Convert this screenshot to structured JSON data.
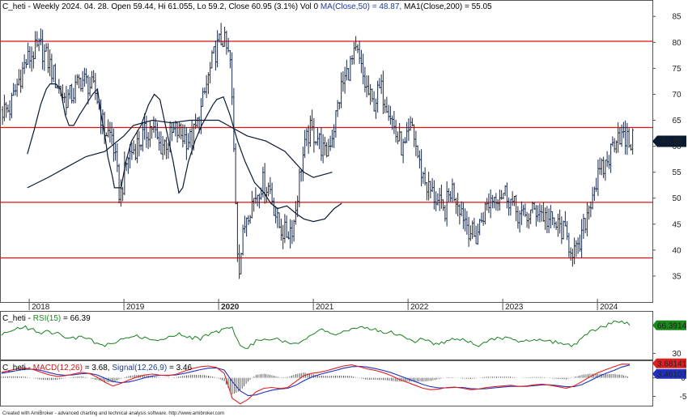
{
  "chart_data": [
    {
      "type": "ohlc",
      "header": {
        "symbol": "C_heti",
        "info": " - Weekly 2024. 04. 28. Open 59.44, Hi 61.055, Lo 59.2, Close 60.95 (3.1%) Vol 0 ",
        "ma50_text": "MA(Close,50) = 48.87,",
        "ma200_text": " MA1(Close,200) = 55.05"
      },
      "last_value_label": "60.95",
      "ylim": [
        30,
        88
      ],
      "yticks": [
        "35",
        "40",
        "45",
        "50",
        "55",
        "60",
        "65",
        "70",
        "75",
        "80",
        "85"
      ],
      "x_labels": [
        "2018",
        "2019",
        "2020",
        "2021",
        "2022",
        "2023",
        "2024"
      ],
      "bold_x_label": "2020",
      "horizontal_lines": [
        80.2,
        63.6,
        49.2,
        38.5
      ],
      "close_series": [
        [
          "2017-10",
          67
        ],
        [
          "2017-11",
          72
        ],
        [
          "2017-12",
          76
        ],
        [
          "2018-01",
          78
        ],
        [
          "2018-02",
          79
        ],
        [
          "2018-03",
          76
        ],
        [
          "2018-04",
          72
        ],
        [
          "2018-05",
          69
        ],
        [
          "2018-06",
          70
        ],
        [
          "2018-07",
          73
        ],
        [
          "2018-08",
          72
        ],
        [
          "2018-09",
          70
        ],
        [
          "2018-10",
          63
        ],
        [
          "2018-11",
          62
        ],
        [
          "2018-12",
          50
        ],
        [
          "2019-01",
          58
        ],
        [
          "2019-02",
          60
        ],
        [
          "2019-03",
          62
        ],
        [
          "2019-04",
          64
        ],
        [
          "2019-05",
          60
        ],
        [
          "2019-06",
          61
        ],
        [
          "2019-07",
          63
        ],
        [
          "2019-08",
          62
        ],
        [
          "2019-09",
          61
        ],
        [
          "2019-10",
          65
        ],
        [
          "2019-11",
          72
        ],
        [
          "2019-12",
          78
        ],
        [
          "2020-01",
          81
        ],
        [
          "2020-02",
          76
        ],
        [
          "2020-03",
          36
        ],
        [
          "2020-04",
          47
        ],
        [
          "2020-05",
          50
        ],
        [
          "2020-06",
          53
        ],
        [
          "2020-07",
          52
        ],
        [
          "2020-08",
          45
        ],
        [
          "2020-09",
          43
        ],
        [
          "2020-10",
          45
        ],
        [
          "2020-11",
          57
        ],
        [
          "2020-12",
          63
        ],
        [
          "2021-01",
          62
        ],
        [
          "2021-02",
          58
        ],
        [
          "2021-03",
          63
        ],
        [
          "2021-04",
          71
        ],
        [
          "2021-05",
          75
        ],
        [
          "2021-06",
          78
        ],
        [
          "2021-07",
          72
        ],
        [
          "2021-08",
          68
        ],
        [
          "2021-09",
          71
        ],
        [
          "2021-10",
          68
        ],
        [
          "2021-11",
          62
        ],
        [
          "2021-12",
          59
        ],
        [
          "2022-01",
          64
        ],
        [
          "2022-02",
          56
        ],
        [
          "2022-03",
          52
        ],
        [
          "2022-04",
          50
        ],
        [
          "2022-05",
          47
        ],
        [
          "2022-06",
          52
        ],
        [
          "2022-07",
          49
        ],
        [
          "2022-08",
          45
        ],
        [
          "2022-09",
          42
        ],
        [
          "2022-10",
          47
        ],
        [
          "2022-11",
          50
        ],
        [
          "2022-12",
          51
        ],
        [
          "2023-01",
          51
        ],
        [
          "2023-02",
          48
        ],
        [
          "2023-03",
          46
        ],
        [
          "2023-04",
          47
        ],
        [
          "2023-05",
          48
        ],
        [
          "2023-06",
          46
        ],
        [
          "2023-07",
          45
        ],
        [
          "2023-08",
          44
        ],
        [
          "2023-09",
          41
        ],
        [
          "2023-10",
          39
        ],
        [
          "2023-11",
          46
        ],
        [
          "2023-12",
          52
        ],
        [
          "2024-01",
          55
        ],
        [
          "2024-02",
          58
        ],
        [
          "2024-03",
          63
        ],
        [
          "2024-04",
          60.95
        ]
      ],
      "series": [
        {
          "name": "MA(Close,50)",
          "values": [
            [
              -0.02,
              58.5
            ],
            [
              0.05,
              63
            ],
            [
              0.12,
              68
            ],
            [
              0.18,
              71
            ],
            [
              0.22,
              72
            ],
            [
              0.28,
              72
            ],
            [
              0.33,
              71
            ],
            [
              0.38,
              66
            ],
            [
              0.42,
              64
            ],
            [
              0.47,
              64
            ],
            [
              0.53,
              66
            ],
            [
              0.6,
              68
            ],
            [
              0.67,
              70
            ],
            [
              0.72,
              71
            ],
            [
              0.76,
              66
            ],
            [
              0.8,
              62
            ],
            [
              0.83,
              58
            ],
            [
              0.88,
              54
            ],
            [
              0.9,
              52
            ],
            [
              0.97,
              52
            ],
            [
              1.02,
              57
            ],
            [
              1.08,
              61
            ],
            [
              1.18,
              64
            ],
            [
              1.26,
              68
            ],
            [
              1.32,
              70
            ],
            [
              1.38,
              69
            ],
            [
              1.45,
              63
            ],
            [
              1.52,
              57
            ],
            [
              1.56,
              53
            ],
            [
              1.58,
              51
            ],
            [
              1.62,
              52
            ],
            [
              1.68,
              57
            ],
            [
              1.75,
              61
            ],
            [
              1.82,
              64
            ],
            [
              1.88,
              66
            ],
            [
              1.94,
              68
            ],
            [
              1.98,
              69
            ],
            [
              2.05,
              69.5
            ],
            [
              2.12,
              66
            ],
            [
              2.2,
              61
            ],
            [
              2.28,
              57
            ],
            [
              2.38,
              53
            ],
            [
              2.48,
              51
            ],
            [
              2.55,
              49
            ],
            [
              2.62,
              48
            ],
            [
              2.72,
              48.5
            ],
            [
              2.82,
              47
            ],
            [
              2.9,
              46
            ],
            [
              3.0,
              45.5
            ],
            [
              3.12,
              46
            ],
            [
              3.22,
              48
            ],
            [
              3.3,
              49
            ]
          ]
        },
        {
          "name": "MA1(Close,200)",
          "values": [
            [
              -0.02,
              52
            ],
            [
              0.2,
              54
            ],
            [
              0.4,
              56
            ],
            [
              0.6,
              58
            ],
            [
              0.8,
              59
            ],
            [
              1.0,
              62
            ],
            [
              1.1,
              64
            ],
            [
              1.3,
              65
            ],
            [
              1.5,
              64.5
            ],
            [
              1.7,
              65
            ],
            [
              1.9,
              65
            ],
            [
              2.0,
              65
            ],
            [
              2.1,
              64
            ],
            [
              2.3,
              62
            ],
            [
              2.5,
              61
            ],
            [
              2.7,
              59
            ],
            [
              2.8,
              57
            ],
            [
              2.9,
              55
            ],
            [
              3.0,
              54
            ],
            [
              3.1,
              54.5
            ],
            [
              3.2,
              55
            ]
          ]
        }
      ]
    },
    {
      "type": "line",
      "header": {
        "symbol": "C_heti",
        "sep": " - ",
        "name": "RSI(15)",
        "value_text": " = 66.39"
      },
      "last_value_label": "66.3914",
      "ylim": [
        22,
        84
      ],
      "yticks": [
        "30"
      ],
      "series": [
        {
          "name": "RSI(15)",
          "values": [
            55,
            58,
            62,
            64,
            60,
            57,
            58,
            55,
            51,
            49,
            52,
            48,
            42,
            40,
            43,
            47,
            50,
            52,
            50,
            48,
            49,
            52,
            55,
            53,
            50,
            49,
            54,
            58,
            61,
            63,
            42,
            37,
            46,
            48,
            49,
            47,
            44,
            43,
            47,
            55,
            60,
            58,
            55,
            57,
            60,
            62,
            64,
            60,
            58,
            57,
            54,
            50,
            46,
            48,
            44,
            42,
            46,
            48,
            47,
            44,
            41,
            45,
            48,
            50,
            48,
            46,
            47,
            49,
            48,
            45,
            44,
            42,
            40,
            50,
            58,
            62,
            66,
            70,
            72,
            66.39
          ]
        }
      ]
    },
    {
      "type": "line",
      "header": {
        "symbol": "C_heti",
        "sep": " - ",
        "name": "MACD(12,26)",
        "value_text": " = 3.68, ",
        "signal_name": "Signal(12,26,9)",
        "signal_text": " = 3.46"
      },
      "macd_label": "3.68141",
      "signal_label": "3.46107",
      "ylim": [
        -7.5,
        4.5
      ],
      "yticks": [
        "0",
        "-5"
      ],
      "series": [
        {
          "name": "MACD(12,26)",
          "color": "#e02020",
          "values": [
            1.5,
            2.0,
            2.4,
            2.6,
            2.2,
            1.5,
            0.8,
            0.4,
            0.6,
            1.0,
            1.5,
            1.2,
            0.2,
            -1.2,
            -2.2,
            -1.5,
            -0.6,
            0.2,
            0.8,
            1.0,
            0.7,
            0.6,
            1.0,
            1.8,
            2.5,
            3.0,
            3.2,
            2.8,
            1.2,
            -5.5,
            -7.0,
            -5.8,
            -3.8,
            -2.8,
            -2.6,
            -2.9,
            -2.6,
            -1.0,
            0.6,
            1.2,
            1.5,
            2.0,
            2.6,
            3.2,
            3.5,
            3.0,
            2.4,
            2.0,
            1.4,
            0.6,
            -0.4,
            -1.2,
            -2.0,
            -2.8,
            -3.2,
            -3.0,
            -2.6,
            -2.5,
            -2.8,
            -3.2,
            -3.0,
            -2.6,
            -2.4,
            -2.2,
            -2.0,
            -2.3,
            -2.2,
            -1.9,
            -1.7,
            -2.0,
            -2.4,
            -2.8,
            -2.2,
            -1.0,
            0.3,
            1.4,
            2.2,
            3.0,
            3.7,
            3.68
          ]
        },
        {
          "name": "Signal(12,26,9)",
          "color": "#2030c0",
          "values": [
            1.2,
            1.6,
            2.0,
            2.3,
            2.3,
            2.0,
            1.4,
            0.9,
            0.7,
            0.8,
            1.1,
            1.2,
            0.8,
            -0.1,
            -1.0,
            -1.3,
            -1.1,
            -0.6,
            0.0,
            0.5,
            0.7,
            0.7,
            0.8,
            1.2,
            1.7,
            2.2,
            2.6,
            2.7,
            2.1,
            -1.0,
            -3.5,
            -4.8,
            -4.6,
            -3.9,
            -3.3,
            -3.0,
            -2.8,
            -2.0,
            -0.8,
            0.2,
            0.9,
            1.5,
            2.0,
            2.6,
            3.0,
            3.1,
            2.9,
            2.5,
            2.0,
            1.4,
            0.6,
            -0.2,
            -1.0,
            -1.8,
            -2.4,
            -2.7,
            -2.7,
            -2.6,
            -2.6,
            -2.9,
            -3.0,
            -2.9,
            -2.7,
            -2.5,
            -2.3,
            -2.3,
            -2.3,
            -2.1,
            -1.9,
            -1.9,
            -2.1,
            -2.4,
            -2.4,
            -1.8,
            -0.8,
            0.3,
            1.2,
            2.0,
            2.9,
            3.46
          ]
        }
      ]
    }
  ],
  "footer": "Created with AmiBroker - advanced charting and technical analysis software. http://www.amibroker.com",
  "colors": {
    "price": "#1a2a4a",
    "ma": "#0a1a30",
    "hline": "#e01010",
    "rsi": "#18801c",
    "rsi_label": "#1a8a1a",
    "last_label": "#0a1a30",
    "macd": "#e02020",
    "signal": "#2030c0",
    "hist": "#333333"
  }
}
